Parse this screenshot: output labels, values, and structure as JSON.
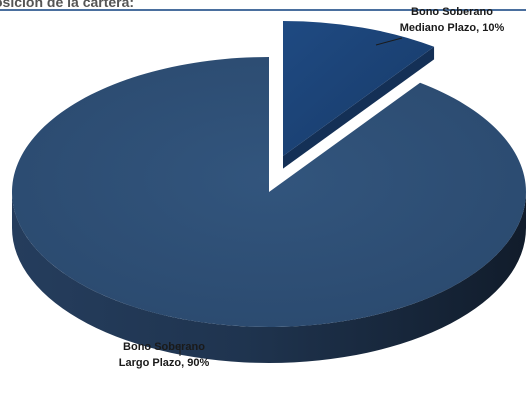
{
  "page": {
    "heading": "osición de la cartera:"
  },
  "chart_data": {
    "type": "pie",
    "style": "3d-exploded",
    "title": "",
    "slices": [
      {
        "name": "Bono Soberano Mediano Plazo",
        "value": 10,
        "label_lines": [
          "Bono Soberano",
          "Mediano Plazo, 10%"
        ],
        "color": "#1c4478"
      },
      {
        "name": "Bono Soberano Largo Plazo",
        "value": 90,
        "label_lines": [
          "Bono Soberano",
          "Largo Plazo, 90%"
        ],
        "color": "#2f4f74"
      }
    ],
    "colors": {
      "top_large": "#2f4f74",
      "top_small": "#1c4478",
      "side": "#18283d"
    }
  }
}
